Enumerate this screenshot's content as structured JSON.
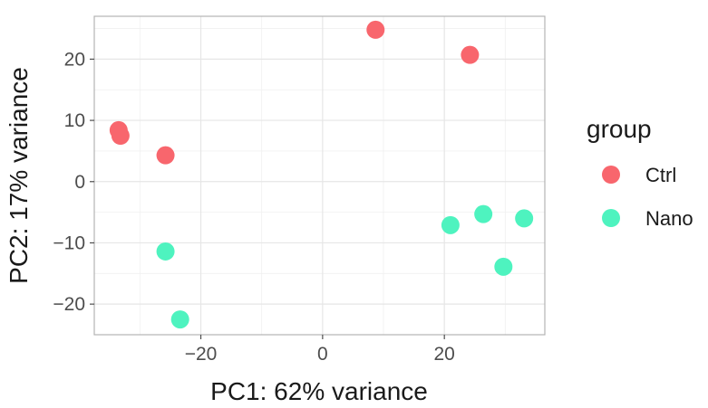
{
  "chart_data": {
    "type": "scatter",
    "xlabel": "PC1: 62% variance",
    "ylabel": "PC2: 17% variance",
    "xlim": [
      -37.5,
      36.5
    ],
    "ylim": [
      -25,
      27
    ],
    "x_ticks": [
      -20,
      0,
      20
    ],
    "y_ticks": [
      -20,
      -10,
      0,
      10,
      20
    ],
    "x_tick_labels": [
      "−20",
      "0",
      "20"
    ],
    "y_tick_labels": [
      "−20",
      "−10",
      "0",
      "10",
      "20"
    ],
    "grid": true,
    "legend": {
      "title": "group",
      "placement": "right",
      "entries": [
        {
          "name": "Ctrl",
          "color": "#F8666D"
        },
        {
          "name": "Nano",
          "color": "#4EF3BF"
        }
      ]
    },
    "series": [
      {
        "name": "Ctrl",
        "color": "#F8666D",
        "points": [
          [
            8.7,
            24.8
          ],
          [
            24.2,
            20.7
          ],
          [
            -33.5,
            8.4
          ],
          [
            -33.2,
            7.5
          ],
          [
            -25.8,
            4.3
          ]
        ]
      },
      {
        "name": "Nano",
        "color": "#4EF3BF",
        "points": [
          [
            21.0,
            -7.1
          ],
          [
            26.4,
            -5.3
          ],
          [
            33.1,
            -6.0
          ],
          [
            29.7,
            -13.9
          ],
          [
            -25.8,
            -11.4
          ],
          [
            -23.4,
            -22.5
          ]
        ]
      }
    ]
  }
}
